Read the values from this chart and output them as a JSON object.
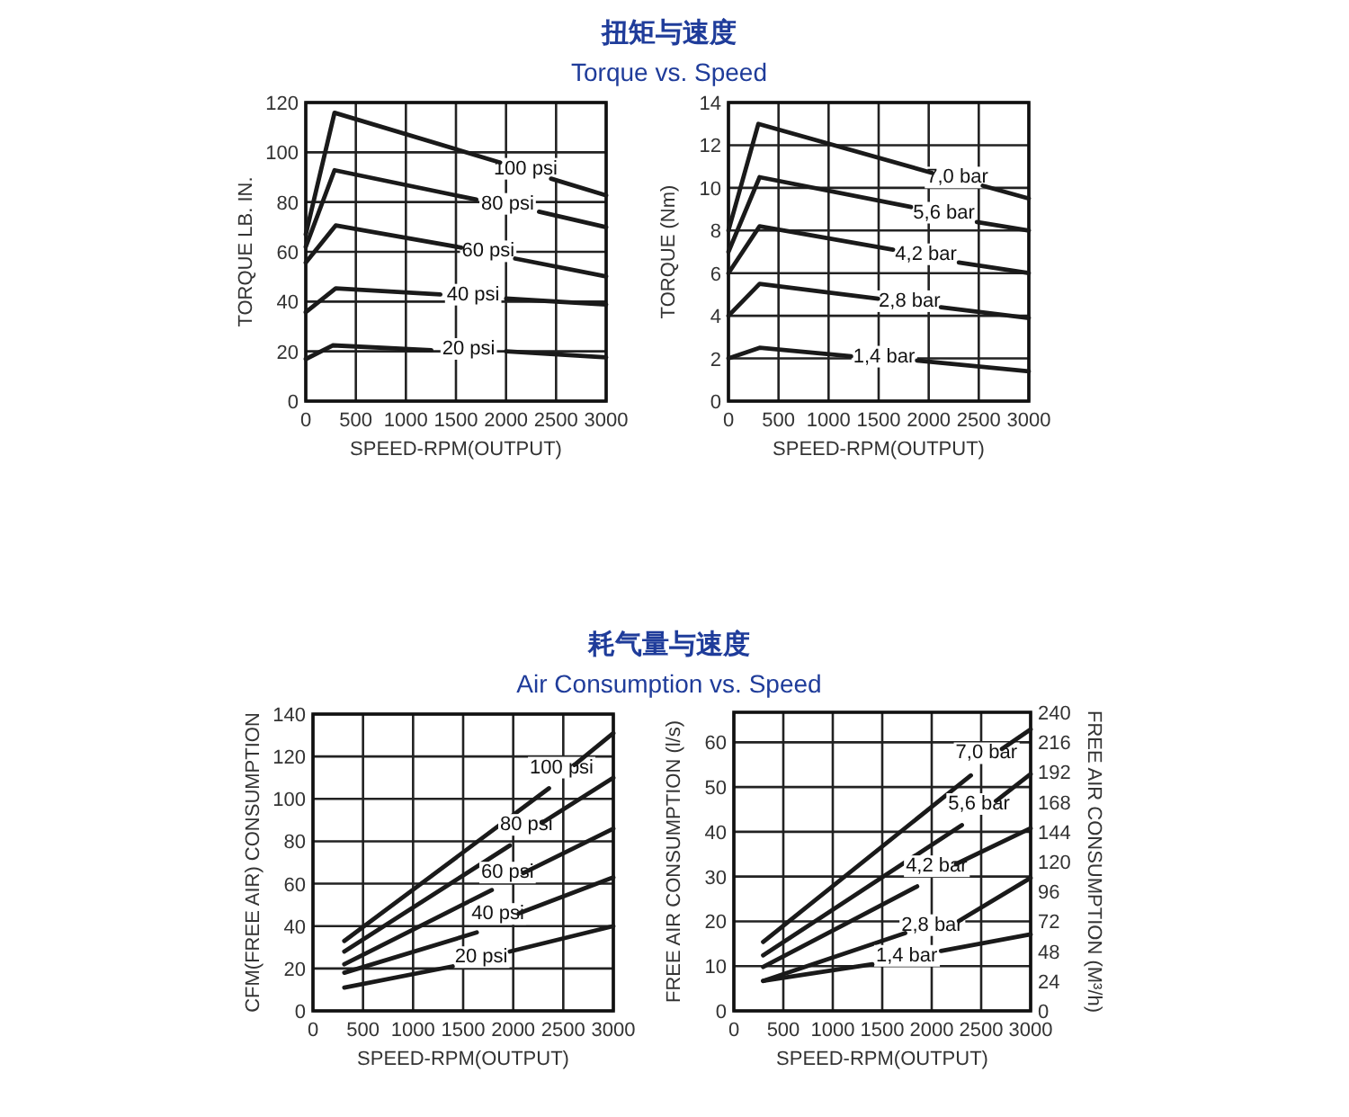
{
  "chart_data": [
    {
      "type": "line",
      "title": "扭矩与速度",
      "subtitle": "Torque vs. Speed",
      "xlabel": "SPEED-RPM(OUTPUT)",
      "ylabel": "TORQUE LB. IN.",
      "xlim": [
        0,
        3000
      ],
      "xticks": [
        0,
        500,
        1000,
        1500,
        2000,
        2500,
        3000
      ],
      "ylim": [
        0,
        120
      ],
      "yticks": [
        0,
        20,
        40,
        60,
        80,
        100,
        120
      ],
      "grid": true,
      "series": [
        {
          "name": "100 psi",
          "color": "#1a1a1a",
          "x": [
            0,
            287,
            1941,
            2195,
            2450,
            3000
          ],
          "values": [
            67,
            115.9,
            95.9,
            null,
            89.4,
            82.7
          ]
        },
        {
          "name": "80 psi",
          "color": "#1a1a1a",
          "x": [
            0,
            287,
            1703,
            2016,
            2330,
            3000
          ],
          "values": [
            62,
            92.8,
            81,
            null,
            76.1,
            69.9
          ]
        },
        {
          "name": "60 psi",
          "color": "#1a1a1a",
          "x": [
            0,
            299,
            1553,
            1822,
            2091,
            3000
          ],
          "values": [
            55.7,
            70.6,
            61.7,
            null,
            57.3,
            50.1
          ]
        },
        {
          "name": "40 psi",
          "color": "#1a1a1a",
          "x": [
            0,
            299,
            1344,
            1672,
            2001,
            3000
          ],
          "values": [
            35.7,
            45.3,
            42.9,
            null,
            41.2,
            38.8
          ]
        },
        {
          "name": "20 psi",
          "color": "#1a1a1a",
          "x": [
            0,
            269,
            1254,
            1627,
            2001,
            3000
          ],
          "values": [
            16.9,
            22.4,
            20.5,
            null,
            20,
            17.6
          ]
        }
      ]
    },
    {
      "type": "line",
      "xlabel": "SPEED-RPM(OUTPUT)",
      "ylabel": "TORQUE (Nm)",
      "xlim": [
        0,
        3000
      ],
      "xticks": [
        0,
        500,
        1000,
        1500,
        2000,
        2500,
        3000
      ],
      "ylim": [
        0,
        14
      ],
      "yticks": [
        0,
        2,
        4,
        6,
        8,
        10,
        12,
        14
      ],
      "grid": true,
      "series": [
        {
          "name": "7,0 bar",
          "color": "#1a1a1a",
          "x": [
            0,
            299,
            2032,
            2286,
            2540,
            3000
          ],
          "values": [
            8,
            13,
            10.7,
            null,
            10.1,
            9.5
          ]
        },
        {
          "name": "5,6 bar",
          "color": "#1a1a1a",
          "x": [
            0,
            311,
            1823,
            2152,
            2481,
            3000
          ],
          "values": [
            7,
            10.5,
            9.1,
            null,
            8.4,
            8
          ]
        },
        {
          "name": "4,2 bar",
          "color": "#1a1a1a",
          "x": [
            0,
            311,
            1644,
            1972,
            2301,
            3000
          ],
          "values": [
            6,
            8.2,
            7.1,
            null,
            6.5,
            6
          ]
        },
        {
          "name": "2,8 bar",
          "color": "#1a1a1a",
          "x": [
            0,
            311,
            1494,
            1808,
            2122,
            3000
          ],
          "values": [
            4,
            5.5,
            4.8,
            null,
            4.4,
            3.9
          ]
        },
        {
          "name": "1,4 bar",
          "color": "#1a1a1a",
          "x": [
            0,
            311,
            1225,
            1554,
            1883,
            3000
          ],
          "values": [
            2,
            2.5,
            2.1,
            null,
            1.9,
            1.4
          ]
        }
      ]
    },
    {
      "type": "line",
      "title": "耗气量与速度",
      "subtitle": "Air Consumption vs. Speed",
      "xlabel": "SPEED-RPM(OUTPUT)",
      "ylabel": "CFM(FREE AIR) CONSUMPTION",
      "xlim": [
        0,
        3000
      ],
      "xticks": [
        0,
        500,
        1000,
        1500,
        2000,
        2500,
        3000
      ],
      "ylim": [
        0,
        140
      ],
      "yticks": [
        0,
        20,
        40,
        60,
        80,
        100,
        120,
        140
      ],
      "grid": true,
      "series": [
        {
          "name": "100 psi",
          "color": "#1a1a1a",
          "x": [
            313,
            2357,
            2484,
            2610,
            3000
          ],
          "values": [
            33,
            105,
            null,
            116,
            131
          ]
        },
        {
          "name": "80 psi",
          "color": "#1a1a1a",
          "x": [
            313,
            1966,
            2132,
            2297,
            3000
          ],
          "values": [
            28,
            78,
            null,
            89,
            110
          ]
        },
        {
          "name": "60 psi",
          "color": "#1a1a1a",
          "x": [
            313,
            1786,
            1943,
            2099,
            3000
          ],
          "values": [
            22,
            57,
            null,
            65,
            86
          ]
        },
        {
          "name": "40 psi",
          "color": "#1a1a1a",
          "x": [
            313,
            1636,
            1847,
            2057,
            3000
          ],
          "values": [
            18,
            37,
            null,
            46,
            63
          ]
        },
        {
          "name": "20 psi",
          "color": "#1a1a1a",
          "x": [
            313,
            1395,
            1681,
            1966,
            3000
          ],
          "values": [
            11,
            21,
            null,
            28,
            40
          ]
        }
      ]
    },
    {
      "type": "line",
      "xlabel": "SPEED-RPM(OUTPUT)",
      "ylabel": "FREE AIR CONSUMPTION (l/s)",
      "y2label": "FREE AIR CONSUMPTION (M³/h)",
      "xlim": [
        0,
        3000
      ],
      "xticks": [
        0,
        500,
        1000,
        1500,
        2000,
        2500,
        3000
      ],
      "ylim": [
        0,
        66.7
      ],
      "yticks": [
        0,
        10,
        20,
        30,
        40,
        50,
        60
      ],
      "y2lim": [
        0,
        240
      ],
      "y2ticks": [
        0,
        24,
        48,
        72,
        96,
        120,
        144,
        168,
        192,
        216,
        240
      ],
      "grid": true,
      "series": [
        {
          "name": "7,0 bar",
          "color": "#1a1a1a",
          "x": [
            296,
            2396,
            2553,
            2710,
            3000
          ],
          "values": [
            15.4,
            52.6,
            null,
            58.5,
            62.9
          ]
        },
        {
          "name": "5,6 bar",
          "color": "#1a1a1a",
          "x": [
            296,
            2305,
            2478,
            2650,
            3000
          ],
          "values": [
            12.4,
            41.5,
            null,
            46.9,
            52.9
          ]
        },
        {
          "name": "4,2 bar",
          "color": "#1a1a1a",
          "x": [
            296,
            1853,
            2049,
            2245,
            3000
          ],
          "values": [
            9.8,
            27.8,
            null,
            32.8,
            40.8
          ]
        },
        {
          "name": "2,8 bar",
          "color": "#1a1a1a",
          "x": [
            296,
            1732,
            2004,
            2275,
            3000
          ],
          "values": [
            6.7,
            17.4,
            null,
            20.1,
            29.7
          ]
        },
        {
          "name": "1,4 bar",
          "color": "#1a1a1a",
          "x": [
            296,
            1400,
            1747,
            2094,
            3000
          ],
          "values": [
            6.7,
            10.4,
            null,
            13.4,
            17.1
          ]
        }
      ]
    }
  ]
}
